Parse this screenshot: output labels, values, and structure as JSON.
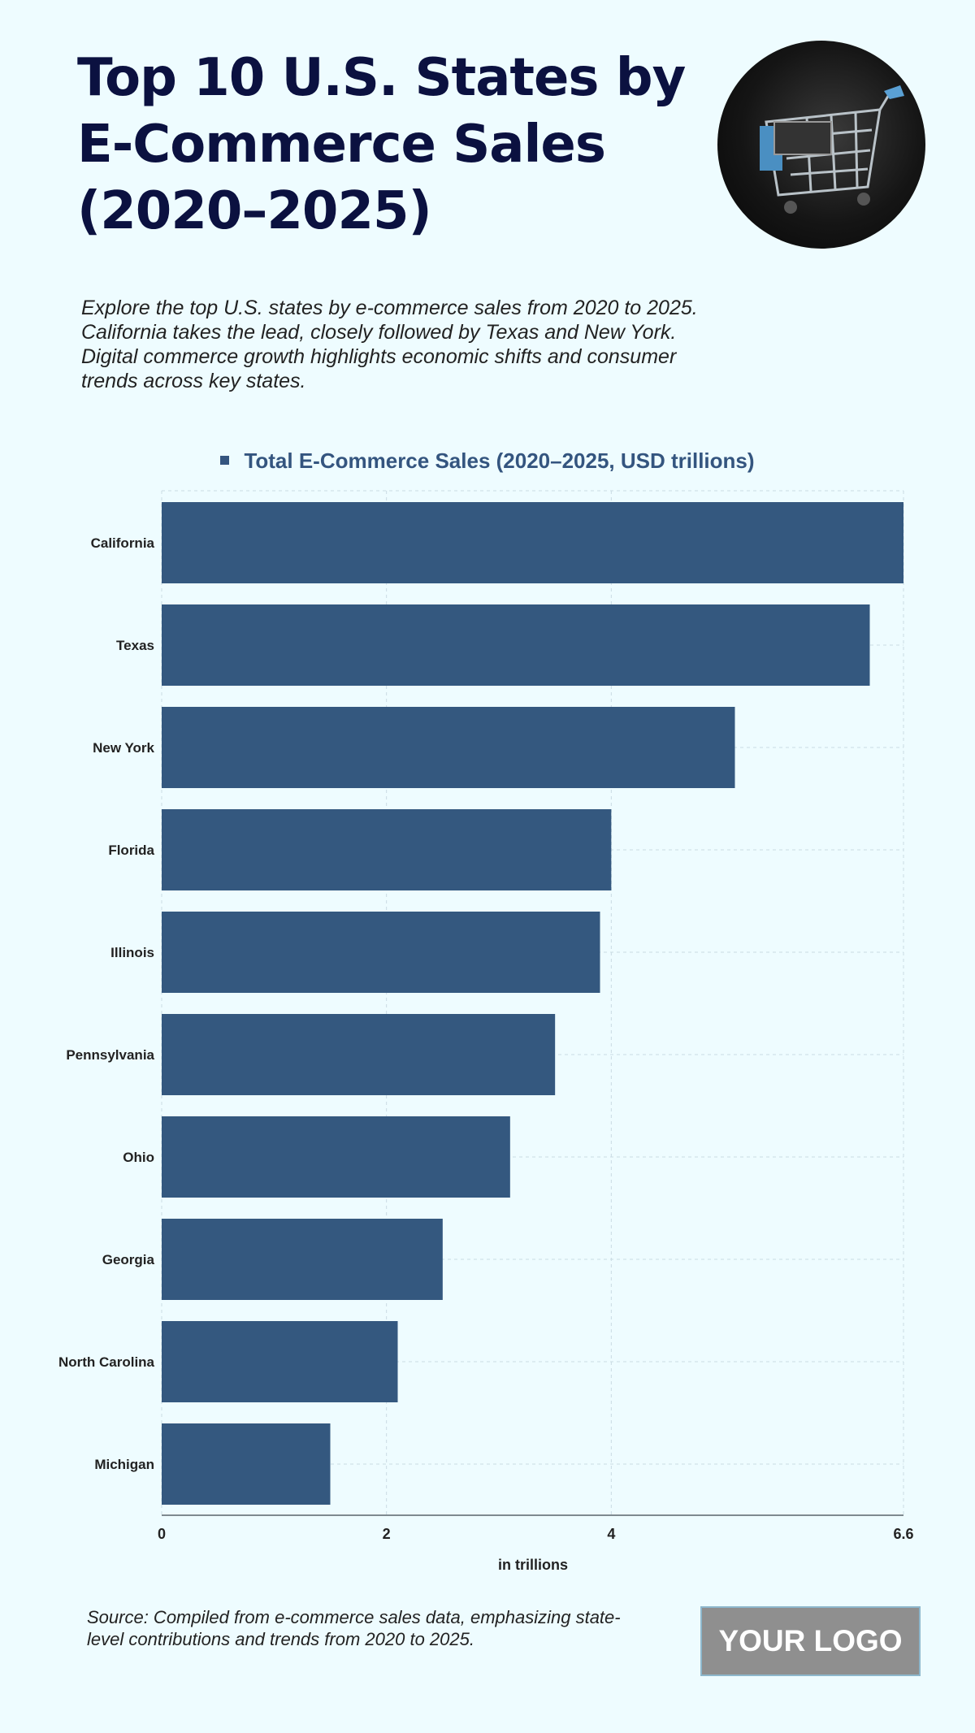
{
  "title": "Top 10 U.S. States by E-Commerce Sales (2020–2025)",
  "subtitle": "Explore the top U.S. states by e-commerce sales from 2020 to 2025. California takes the lead, closely followed by Texas and New York. Digital commerce growth highlights economic shifts and consumer trends across key states.",
  "image_icon": "shopping-cart-photo",
  "source": "Source: Compiled from e-commerce sales data, emphasizing state-level contributions and trends from 2020 to 2025.",
  "logo": "YOUR LOGO",
  "chart_data": {
    "type": "bar",
    "orientation": "horizontal",
    "categories": [
      "California",
      "Texas",
      "New York",
      "Florida",
      "Illinois",
      "Pennsylvania",
      "Ohio",
      "Georgia",
      "North Carolina",
      "Michigan"
    ],
    "series": [
      {
        "name": "Total E-Commerce Sales (2020–2025, USD trillions)",
        "values": [
          6.6,
          6.3,
          5.1,
          4.0,
          3.9,
          3.5,
          3.1,
          2.5,
          2.1,
          1.5
        ],
        "color": "#34587f"
      }
    ],
    "xlabel": "in trillions",
    "ylabel": "",
    "xlim": [
      0,
      6.6
    ],
    "xticks": [
      "0",
      "2",
      "4",
      "6.6"
    ],
    "xtick_values": [
      0,
      2,
      4,
      6.6
    ],
    "grid": true,
    "legend": "top"
  }
}
